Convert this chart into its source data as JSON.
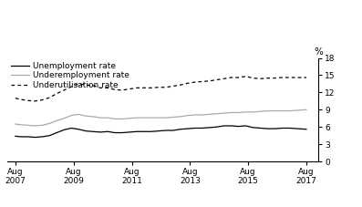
{
  "ylabel": "%",
  "ylim": [
    0,
    18
  ],
  "yticks": [
    0,
    3,
    6,
    9,
    12,
    15,
    18
  ],
  "xtick_labels": [
    "Aug\n2007",
    "Aug\n2009",
    "Aug\n2011",
    "Aug\n2013",
    "Aug\n2015",
    "Aug\n2017"
  ],
  "xtick_positions": [
    2007.58,
    2009.58,
    2011.58,
    2013.58,
    2015.58,
    2017.58
  ],
  "xlim": [
    2007.3,
    2018.0
  ],
  "legend_labels": [
    "Unemployment rate",
    "Underemployment rate",
    "Underutilisation rate"
  ],
  "unemployment": {
    "x": [
      2007.58,
      2007.75,
      2008.0,
      2008.25,
      2008.5,
      2008.75,
      2009.0,
      2009.25,
      2009.5,
      2009.75,
      2010.0,
      2010.25,
      2010.5,
      2010.75,
      2011.0,
      2011.25,
      2011.5,
      2011.75,
      2012.0,
      2012.25,
      2012.5,
      2012.75,
      2013.0,
      2013.25,
      2013.5,
      2013.75,
      2014.0,
      2014.25,
      2014.5,
      2014.75,
      2015.0,
      2015.25,
      2015.5,
      2015.75,
      2016.0,
      2016.25,
      2016.5,
      2016.75,
      2017.0,
      2017.58
    ],
    "y": [
      4.4,
      4.3,
      4.3,
      4.2,
      4.3,
      4.5,
      5.0,
      5.5,
      5.8,
      5.6,
      5.3,
      5.2,
      5.1,
      5.2,
      5.0,
      5.0,
      5.1,
      5.2,
      5.2,
      5.2,
      5.3,
      5.4,
      5.4,
      5.6,
      5.7,
      5.8,
      5.8,
      5.9,
      6.0,
      6.2,
      6.2,
      6.1,
      6.2,
      5.9,
      5.8,
      5.7,
      5.7,
      5.8,
      5.8,
      5.6
    ]
  },
  "underemployment": {
    "x": [
      2007.58,
      2007.75,
      2008.0,
      2008.25,
      2008.5,
      2008.75,
      2009.0,
      2009.25,
      2009.5,
      2009.75,
      2010.0,
      2010.25,
      2010.5,
      2010.75,
      2011.0,
      2011.25,
      2011.5,
      2011.75,
      2012.0,
      2012.25,
      2012.5,
      2012.75,
      2013.0,
      2013.25,
      2013.5,
      2013.75,
      2014.0,
      2014.25,
      2014.5,
      2014.75,
      2015.0,
      2015.25,
      2015.5,
      2015.75,
      2016.0,
      2016.25,
      2016.5,
      2016.75,
      2017.0,
      2017.58
    ],
    "y": [
      6.5,
      6.4,
      6.3,
      6.2,
      6.3,
      6.6,
      7.1,
      7.5,
      8.0,
      8.2,
      7.9,
      7.8,
      7.6,
      7.6,
      7.4,
      7.4,
      7.5,
      7.6,
      7.6,
      7.6,
      7.6,
      7.6,
      7.7,
      7.8,
      8.0,
      8.1,
      8.1,
      8.2,
      8.3,
      8.4,
      8.5,
      8.5,
      8.6,
      8.6,
      8.7,
      8.8,
      8.8,
      8.8,
      8.8,
      9.0
    ]
  },
  "underutilisation": {
    "x": [
      2007.58,
      2007.75,
      2008.0,
      2008.25,
      2008.5,
      2008.75,
      2009.0,
      2009.25,
      2009.5,
      2009.75,
      2010.0,
      2010.25,
      2010.5,
      2010.75,
      2011.0,
      2011.25,
      2011.5,
      2011.75,
      2012.0,
      2012.25,
      2012.5,
      2012.75,
      2013.0,
      2013.25,
      2013.5,
      2013.75,
      2014.0,
      2014.25,
      2014.5,
      2014.75,
      2015.0,
      2015.25,
      2015.5,
      2015.75,
      2016.0,
      2016.25,
      2016.5,
      2016.75,
      2017.0,
      2017.58
    ],
    "y": [
      11.0,
      10.8,
      10.6,
      10.5,
      10.7,
      11.1,
      11.8,
      12.4,
      13.0,
      13.5,
      13.3,
      13.2,
      12.8,
      12.8,
      12.5,
      12.4,
      12.6,
      12.8,
      12.8,
      12.8,
      12.9,
      12.9,
      13.1,
      13.3,
      13.6,
      13.8,
      13.9,
      14.0,
      14.2,
      14.4,
      14.6,
      14.6,
      14.8,
      14.5,
      14.4,
      14.5,
      14.5,
      14.6,
      14.6,
      14.6
    ]
  },
  "line_color_black": "#000000",
  "line_color_gray": "#aaaaaa",
  "background_color": "#ffffff",
  "tick_fontsize": 6.5,
  "legend_fontsize": 6.5,
  "ylabel_fontsize": 7.5
}
